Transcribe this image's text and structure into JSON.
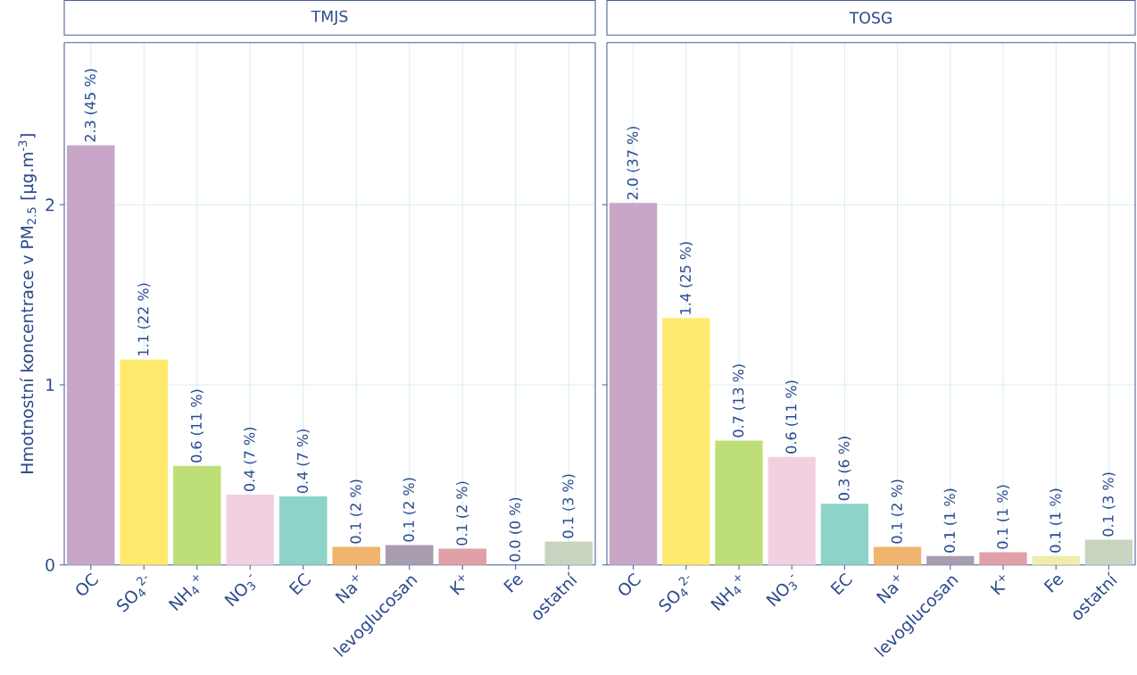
{
  "chart_data": [
    {
      "type": "bar",
      "title": "TMJS",
      "ylabel": "Hmotnostní koncentrace v  PM$_{2.5}$ [µg.m$^{-3}$]",
      "categories": [
        "OC",
        "SO$_{4}$$^{2-}$",
        "NH$_{4}$$^{+}$",
        "NO$_{3}$$^{-}$",
        "EC",
        "Na$^{+}$",
        "levoglucosan",
        "K$^{+}$",
        "Fe",
        "ostatní"
      ],
      "values": [
        2.33,
        1.14,
        0.55,
        0.39,
        0.38,
        0.1,
        0.11,
        0.09,
        0.0,
        0.13
      ],
      "colors": [
        "#c8a6c8",
        "#ffea6e",
        "#bede78",
        "#f1d0e0",
        "#8dd3c7",
        "#f0b46e",
        "#a89cb0",
        "#e0a0a8",
        "#eeeeaa",
        "#c8d4c0"
      ],
      "value_labels": [
        "2.3 (45 %)",
        "1.1 (22 %)",
        "0.6 (11 %)",
        "0.4 (7 %)",
        "0.4 (7 %)",
        "0.1 (2 %)",
        "0.1 (2 %)",
        "0.1 (2 %)",
        "0.0 (0 %)",
        "0.1 (3 %)"
      ],
      "ylim": [
        0,
        2.9
      ],
      "yticks": [
        0,
        1,
        2
      ],
      "grid": true
    },
    {
      "type": "bar",
      "title": "TOSG",
      "categories": [
        "OC",
        "SO$_{4}$$^{2-}$",
        "NH$_{4}$$^{+}$",
        "NO$_{3}$$^{-}$",
        "EC",
        "Na$^{+}$",
        "levoglucosan",
        "K$^{+}$",
        "Fe",
        "ostatní"
      ],
      "values": [
        2.01,
        1.37,
        0.69,
        0.6,
        0.34,
        0.1,
        0.05,
        0.07,
        0.05,
        0.14
      ],
      "colors": [
        "#c8a6c8",
        "#ffea6e",
        "#bede78",
        "#f1d0e0",
        "#8dd3c7",
        "#f0b46e",
        "#a89cb0",
        "#e0a0a8",
        "#eeeeaa",
        "#c8d4c0"
      ],
      "value_labels": [
        "2.0 (37 %)",
        "1.4 (25 %)",
        "0.7 (13 %)",
        "0.6 (11 %)",
        "0.3 (6 %)",
        "0.1 (2 %)",
        "0.1 (1 %)",
        "0.1 (1 %)",
        "0.1 (1 %)",
        "0.1 (3 %)"
      ],
      "ylim": [
        0,
        2.9
      ],
      "yticks": [
        0,
        1,
        2
      ],
      "grid": true,
      "tick_labels": "x"
    }
  ]
}
